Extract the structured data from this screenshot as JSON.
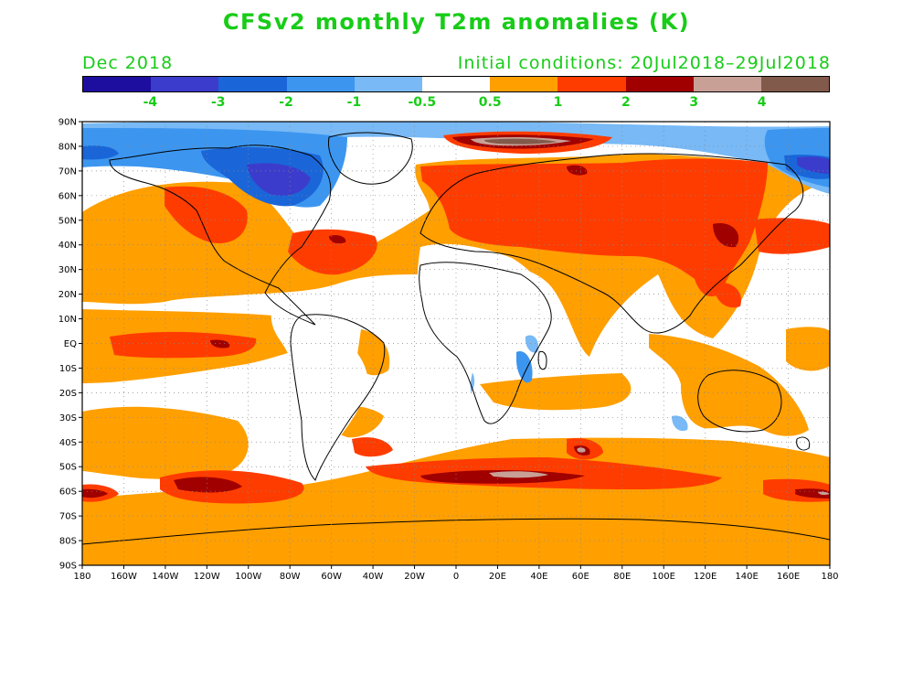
{
  "title": "CFSv2 monthly T2m anomalies (K)",
  "subtitle_left": "Dec 2018",
  "subtitle_right": "Initial conditions: 20Jul2018–29Jul2018",
  "colorbar": {
    "colors": [
      "#1e0ea0",
      "#3c3ccc",
      "#1a66d8",
      "#3c96f0",
      "#78b9f6",
      "#ffffff",
      "#ff9f00",
      "#ff3c00",
      "#a00000",
      "#c8a096",
      "#825a4b"
    ],
    "labels": [
      "-4",
      "-3",
      "-2",
      "-1",
      "-0.5",
      "0.5",
      "1",
      "2",
      "3",
      "4"
    ]
  },
  "map": {
    "lat_labels": [
      "90N",
      "80N",
      "70N",
      "60N",
      "50N",
      "40N",
      "30N",
      "20N",
      "10N",
      "EQ",
      "10S",
      "20S",
      "30S",
      "40S",
      "50S",
      "60S",
      "70S",
      "80S",
      "90S"
    ],
    "lon_labels": [
      "180",
      "160W",
      "140W",
      "120W",
      "100W",
      "80W",
      "60W",
      "40W",
      "20W",
      "0",
      "20E",
      "40E",
      "60E",
      "80E",
      "100E",
      "120E",
      "140E",
      "160E",
      "180"
    ]
  }
}
